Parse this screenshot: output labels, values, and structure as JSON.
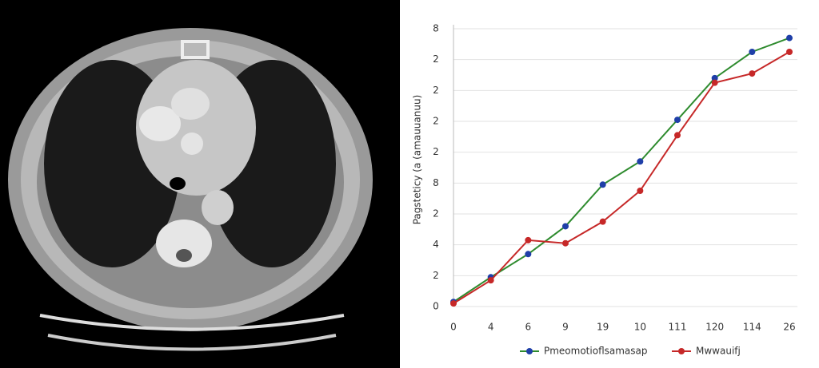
{
  "chart_data": {
    "type": "line",
    "y_label": "Pagsteticy (a (amauuanuu)",
    "categories": [
      "0",
      "4",
      "6",
      "9",
      "19",
      "10",
      "111",
      "120",
      "114",
      "26"
    ],
    "series": [
      {
        "name": "Pmeomotioflsamasap",
        "color": "#2e8b2e",
        "marker_color": "#1f3fa8",
        "values": [
          0.3,
          1.9,
          3.4,
          5.2,
          7.9,
          9.4,
          12.1,
          14.8,
          16.5,
          17.4
        ]
      },
      {
        "name": "Mwwauifj",
        "color": "#c62828",
        "marker_color": "#c62828",
        "values": [
          0.2,
          1.7,
          4.3,
          4.1,
          5.5,
          7.5,
          11.1,
          14.5,
          15.1,
          16.5
        ]
      }
    ],
    "ylim": [
      0,
      18
    ],
    "yticks": [
      0,
      2,
      4,
      {
        "value": 6,
        "label": "2"
      },
      8,
      {
        "value": 10,
        "label": "2"
      },
      {
        "value": 12,
        "label": "2"
      },
      {
        "value": 14,
        "label": "2"
      },
      {
        "value": 16,
        "label": "2"
      },
      {
        "value": 18,
        "label": "8"
      }
    ],
    "grid": true
  }
}
